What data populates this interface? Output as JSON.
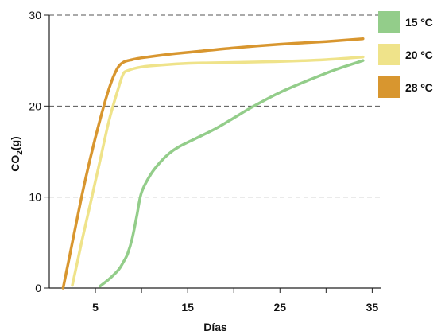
{
  "chart_data": {
    "type": "line",
    "title": "",
    "xlabel": "Días",
    "ylabel_main": "CO",
    "ylabel_sub": "2",
    "ylabel_tail": "(g)",
    "xlim": [
      0,
      36
    ],
    "ylim": [
      0,
      30
    ],
    "x_ticks": [
      5,
      15,
      25,
      35
    ],
    "x_minor_ticks": [
      10,
      20,
      30
    ],
    "y_ticks": [
      0,
      10,
      20,
      30
    ],
    "grid": "horizontal-dashed",
    "legend_position": "top-right",
    "series": [
      {
        "name": "15 ºC",
        "color": "#93cd8a",
        "points": [
          [
            5.5,
            0.2
          ],
          [
            6.5,
            1
          ],
          [
            7.5,
            2
          ],
          [
            8,
            2.8
          ],
          [
            8.5,
            3.8
          ],
          [
            9,
            5.5
          ],
          [
            9.5,
            8
          ],
          [
            10,
            10.5
          ],
          [
            11,
            12.5
          ],
          [
            12,
            13.8
          ],
          [
            13,
            14.8
          ],
          [
            14,
            15.5
          ],
          [
            16,
            16.5
          ],
          [
            18,
            17.5
          ],
          [
            20,
            18.7
          ],
          [
            22,
            19.9
          ],
          [
            25,
            21.5
          ],
          [
            28,
            22.8
          ],
          [
            31,
            24
          ],
          [
            34,
            25
          ]
        ]
      },
      {
        "name": "20 ºC",
        "color": "#efe38a",
        "points": [
          [
            2.5,
            0.3
          ],
          [
            3.5,
            5
          ],
          [
            4.5,
            9.5
          ],
          [
            5.5,
            14
          ],
          [
            6.5,
            18.5
          ],
          [
            7.5,
            22
          ],
          [
            8,
            23.5
          ],
          [
            8.5,
            23.9
          ],
          [
            10,
            24.3
          ],
          [
            12,
            24.5
          ],
          [
            15,
            24.7
          ],
          [
            20,
            24.8
          ],
          [
            25,
            24.9
          ],
          [
            30,
            25.1
          ],
          [
            34,
            25.4
          ]
        ]
      },
      {
        "name": "28 ºC",
        "color": "#d8962f",
        "points": [
          [
            1.5,
            0
          ],
          [
            2.5,
            5
          ],
          [
            3.5,
            10
          ],
          [
            4.5,
            14.5
          ],
          [
            5.5,
            18.5
          ],
          [
            6.5,
            22
          ],
          [
            7.3,
            24
          ],
          [
            8,
            24.8
          ],
          [
            9,
            25.1
          ],
          [
            10,
            25.3
          ],
          [
            13,
            25.7
          ],
          [
            16,
            26
          ],
          [
            20,
            26.4
          ],
          [
            25,
            26.8
          ],
          [
            30,
            27.1
          ],
          [
            34,
            27.4
          ]
        ]
      }
    ]
  }
}
